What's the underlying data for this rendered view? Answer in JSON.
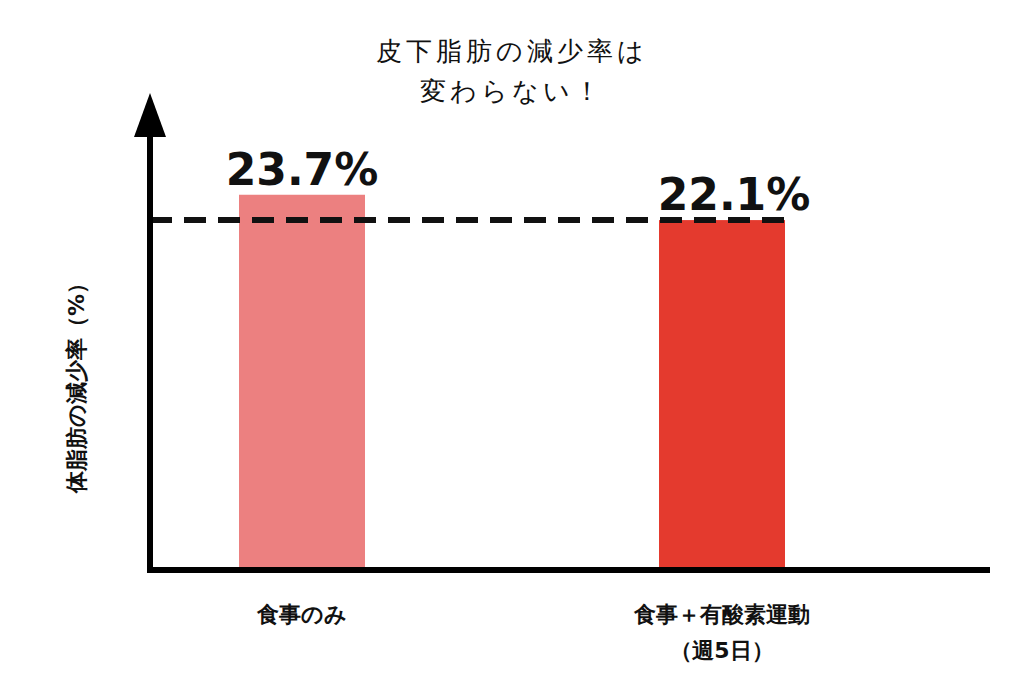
{
  "chart_data": {
    "type": "bar",
    "title": "皮下脂肪の減少率は\n変わらない！",
    "y_label": "体脂肪の減少率（%）",
    "categories": [
      "食事のみ",
      "食事＋有酸素運動\n（週5日）"
    ],
    "values": [
      23.7,
      22.1
    ],
    "value_labels": [
      "23.7%",
      "22.1%"
    ],
    "colors": [
      "#ec8080",
      "#e43a2e"
    ],
    "ylim": [
      0,
      30
    ],
    "yticks": [],
    "grid": false,
    "data_labels": true,
    "tick_labels": "x"
  }
}
